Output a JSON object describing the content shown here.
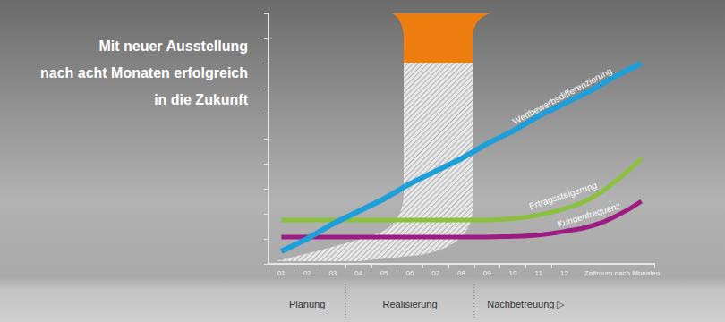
{
  "chart_data": {
    "type": "line",
    "title": [
      "Mit neuer Ausstellung",
      "nach acht Monaten erfolgreich",
      "in die Zukunft"
    ],
    "x_label": "Zeitraum nach Monaten",
    "categories": [
      "01",
      "02",
      "03",
      "04",
      "05",
      "06",
      "07",
      "08",
      "09",
      "10",
      "11",
      "12",
      null,
      null,
      null
    ],
    "series": [
      {
        "name": "Wettbewerbsdifferenzierung",
        "color": "#1e9fda",
        "values": [
          0.5,
          1.0,
          1.6,
          2.1,
          2.6,
          3.2,
          3.7,
          4.2,
          4.8,
          5.3,
          5.9,
          6.4,
          6.9,
          7.5,
          8.0
        ]
      },
      {
        "name": "Ertragssteigerung",
        "color": "#8cc13f",
        "values": [
          1.75,
          1.75,
          1.75,
          1.75,
          1.75,
          1.75,
          1.75,
          1.75,
          1.75,
          1.8,
          1.95,
          2.2,
          2.6,
          3.3,
          4.2
        ]
      },
      {
        "name": "Kundenfrequenz",
        "color": "#9c1c84",
        "values": [
          1.07,
          1.07,
          1.07,
          1.07,
          1.07,
          1.07,
          1.07,
          1.07,
          1.07,
          1.1,
          1.15,
          1.3,
          1.5,
          1.9,
          2.5
        ]
      }
    ],
    "ylim": [
      0,
      10
    ],
    "yticks": [
      0,
      1,
      2,
      3,
      4,
      5,
      6,
      7,
      8,
      9,
      10
    ],
    "tick_labels": "x",
    "grid": false,
    "phases": [
      {
        "label": "Planung",
        "from": "01",
        "to": "03"
      },
      {
        "label": "Realisierung",
        "from": "04",
        "to": "08"
      },
      {
        "label": "Nachbetreuung ▷",
        "from": "09",
        "to": "12"
      }
    ]
  }
}
